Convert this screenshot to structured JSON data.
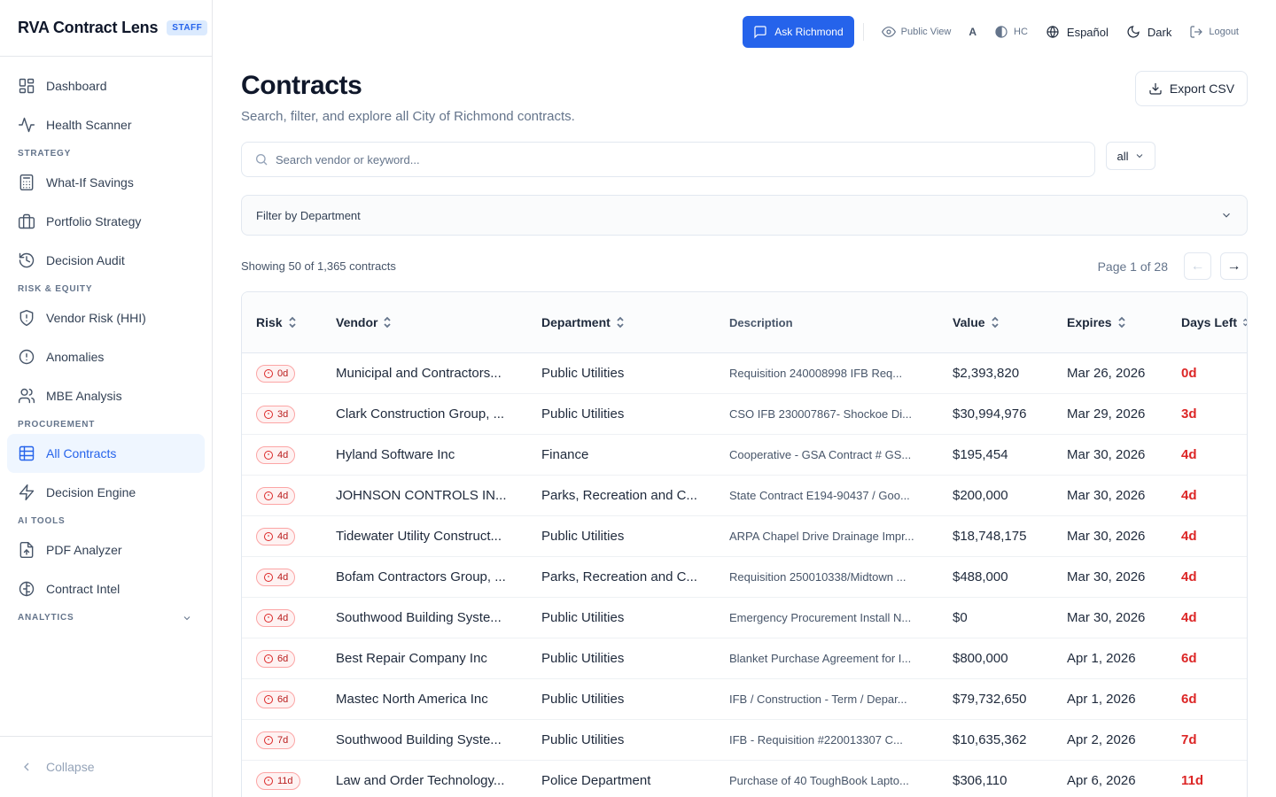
{
  "app": {
    "title": "RVA Contract Lens",
    "badge": "STAFF"
  },
  "sidebar": {
    "items_top": [
      {
        "label": "Dashboard",
        "icon": "dashboard-icon"
      },
      {
        "label": "Health Scanner",
        "icon": "activity-icon"
      }
    ],
    "sections": [
      {
        "title": "STRATEGY",
        "items": [
          {
            "label": "What-If Savings",
            "icon": "calculator-icon"
          },
          {
            "label": "Portfolio Strategy",
            "icon": "briefcase-icon"
          },
          {
            "label": "Decision Audit",
            "icon": "history-icon"
          }
        ]
      },
      {
        "title": "RISK & EQUITY",
        "items": [
          {
            "label": "Vendor Risk (HHI)",
            "icon": "shield-icon"
          },
          {
            "label": "Anomalies",
            "icon": "alert-circle-icon"
          },
          {
            "label": "MBE Analysis",
            "icon": "users-icon"
          }
        ]
      },
      {
        "title": "PROCUREMENT",
        "items": [
          {
            "label": "All Contracts",
            "icon": "table-icon",
            "active": true
          },
          {
            "label": "Decision Engine",
            "icon": "zap-icon"
          }
        ]
      },
      {
        "title": "AI TOOLS",
        "items": [
          {
            "label": "PDF Analyzer",
            "icon": "file-upload-icon"
          },
          {
            "label": "Contract Intel",
            "icon": "brain-icon"
          }
        ]
      }
    ],
    "analytics_label": "ANALYTICS",
    "collapse_label": "Collapse"
  },
  "topbar": {
    "ask_label": "Ask Richmond",
    "public_view": "Public View",
    "font_size": "A",
    "contrast": "HC",
    "language": "Español",
    "theme": "Dark",
    "logout": "Logout"
  },
  "main": {
    "title": "Contracts",
    "subtitle": "Search, filter, and explore all City of Richmond contracts.",
    "export_label": "Export CSV",
    "search_placeholder": "Search vendor or keyword...",
    "status_value": "all",
    "dept_filter_label": "Filter by Department",
    "showing_text": "Showing 50 of 1,365 contracts",
    "page_text": "Page 1 of 28",
    "prev_arrow": "←",
    "next_arrow": "→"
  },
  "table": {
    "headers": {
      "risk": "Risk",
      "vendor": "Vendor",
      "department": "Department",
      "description": "Description",
      "value": "Value",
      "expires": "Expires",
      "days_left": "Days Left"
    },
    "rows": [
      {
        "risk": "0d",
        "vendor": "Municipal and Contractors...",
        "department": "Public Utilities",
        "description": "Requisition 240008998 IFB Req...",
        "value": "$2,393,820",
        "expires": "Mar 26, 2026",
        "days_left": "0d"
      },
      {
        "risk": "3d",
        "vendor": "Clark Construction Group, ...",
        "department": "Public Utilities",
        "description": "CSO IFB 230007867- Shockoe Di...",
        "value": "$30,994,976",
        "expires": "Mar 29, 2026",
        "days_left": "3d"
      },
      {
        "risk": "4d",
        "vendor": "Hyland Software Inc",
        "department": "Finance",
        "description": "Cooperative - GSA Contract # GS...",
        "value": "$195,454",
        "expires": "Mar 30, 2026",
        "days_left": "4d"
      },
      {
        "risk": "4d",
        "vendor": "JOHNSON CONTROLS IN...",
        "department": "Parks, Recreation and C...",
        "description": "State Contract E194-90437 / Goo...",
        "value": "$200,000",
        "expires": "Mar 30, 2026",
        "days_left": "4d"
      },
      {
        "risk": "4d",
        "vendor": "Tidewater Utility Construct...",
        "department": "Public Utilities",
        "description": "ARPA Chapel Drive Drainage Impr...",
        "value": "$18,748,175",
        "expires": "Mar 30, 2026",
        "days_left": "4d"
      },
      {
        "risk": "4d",
        "vendor": "Bofam Contractors Group, ...",
        "department": "Parks, Recreation and C...",
        "description": "Requisition 250010338/Midtown ...",
        "value": "$488,000",
        "expires": "Mar 30, 2026",
        "days_left": "4d"
      },
      {
        "risk": "4d",
        "vendor": "Southwood Building Syste...",
        "department": "Public Utilities",
        "description": "Emergency Procurement Install N...",
        "value": "$0",
        "expires": "Mar 30, 2026",
        "days_left": "4d"
      },
      {
        "risk": "6d",
        "vendor": "Best Repair Company Inc",
        "department": "Public Utilities",
        "description": "Blanket Purchase Agreement for I...",
        "value": "$800,000",
        "expires": "Apr 1, 2026",
        "days_left": "6d"
      },
      {
        "risk": "6d",
        "vendor": "Mastec North America Inc",
        "department": "Public Utilities",
        "description": "IFB / Construction - Term / Depar...",
        "value": "$79,732,650",
        "expires": "Apr 1, 2026",
        "days_left": "6d"
      },
      {
        "risk": "7d",
        "vendor": "Southwood Building Syste...",
        "department": "Public Utilities",
        "description": "IFB - Requisition #220013307 C...",
        "value": "$10,635,362",
        "expires": "Apr 2, 2026",
        "days_left": "7d"
      },
      {
        "risk": "11d",
        "vendor": "Law and Order Technology...",
        "department": "Police Department",
        "description": "Purchase of 40 ToughBook Lapto...",
        "value": "$306,110",
        "expires": "Apr 6, 2026",
        "days_left": "11d"
      }
    ]
  }
}
